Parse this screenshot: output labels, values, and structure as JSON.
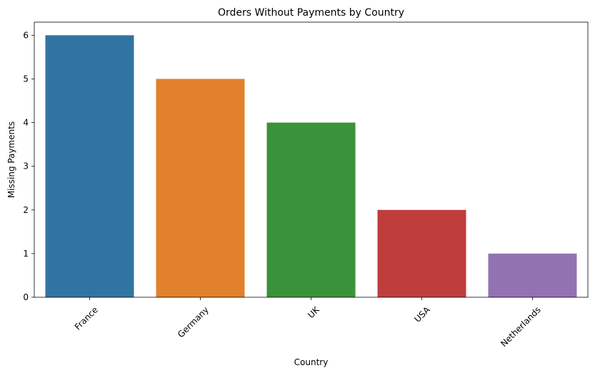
{
  "chart_data": {
    "type": "bar",
    "title": "Orders Without Payments by Country",
    "xlabel": "Country",
    "ylabel": "Missing Payments",
    "categories": [
      "France",
      "Germany",
      "UK",
      "USA",
      "Netherlands"
    ],
    "values": [
      6,
      5,
      4,
      2,
      1
    ],
    "colors": [
      "#3274a1",
      "#e1812c",
      "#3a923a",
      "#c03d3e",
      "#9372b2"
    ],
    "ylim": [
      0,
      6.3
    ],
    "yticks": [
      0,
      1,
      2,
      3,
      4,
      5,
      6
    ],
    "xtick_rotation_deg": 45,
    "grid": false,
    "legend": "none"
  }
}
